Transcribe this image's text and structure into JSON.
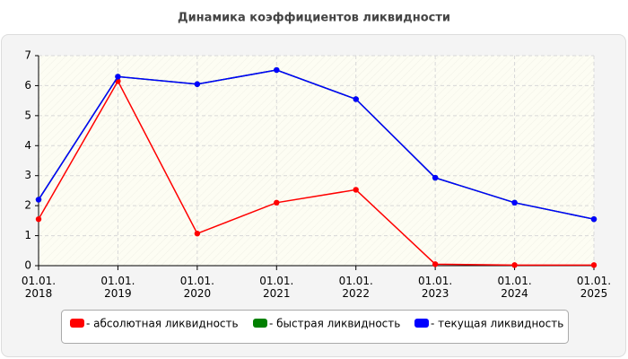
{
  "chart_data": {
    "type": "line",
    "title": "Динамика коэффициентов ликвидности",
    "categories": [
      "01.01.\n2018",
      "01.01.\n2019",
      "01.01.\n2020",
      "01.01.\n2021",
      "01.01.\n2022",
      "01.01.\n2023",
      "01.01.\n2024",
      "01.01.\n2025"
    ],
    "series": [
      {
        "name": "- абсолютная ликвидность",
        "color": "#ff0000",
        "values": [
          1.55,
          6.15,
          1.07,
          2.1,
          2.53,
          0.05,
          0.02,
          0.02
        ]
      },
      {
        "name": "- быстрая ликвидность",
        "color": "#008000",
        "values": [
          2.2,
          6.3,
          6.05,
          6.52,
          5.55,
          2.93,
          2.1,
          1.55
        ]
      },
      {
        "name": "- текущая ликвидность",
        "color": "#0000ff",
        "values": [
          2.2,
          6.3,
          6.05,
          6.52,
          5.55,
          2.93,
          2.1,
          1.55
        ]
      }
    ],
    "ylim": [
      0,
      7
    ],
    "yticks": [
      0,
      1,
      2,
      3,
      4,
      5,
      6,
      7
    ],
    "grid": true
  }
}
